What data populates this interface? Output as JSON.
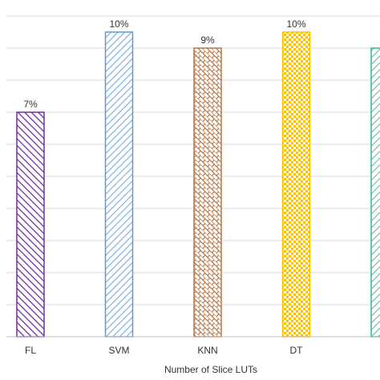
{
  "chart_data": {
    "type": "bar",
    "x_label": "Number of Slice LUTs",
    "categories": [
      "FL",
      "SVM",
      "KNN",
      "DT",
      null
    ],
    "values": [
      7,
      9.5,
      9,
      9.5,
      9
    ],
    "value_labels": [
      "7%",
      "10%",
      "9%",
      "10%",
      null
    ],
    "colors": [
      "#7030a0",
      "#5b9bd5",
      "#b9774a",
      "#ffc000",
      "#3fb28f"
    ],
    "patterns": [
      "diag-back",
      "diag-fwd",
      "brick",
      "checker",
      "diag-fwd"
    ],
    "ylim": [
      0,
      10.25
    ],
    "yticks": [
      0,
      1,
      2,
      3,
      4,
      5,
      6,
      7,
      8,
      9,
      10
    ],
    "grid": true
  }
}
